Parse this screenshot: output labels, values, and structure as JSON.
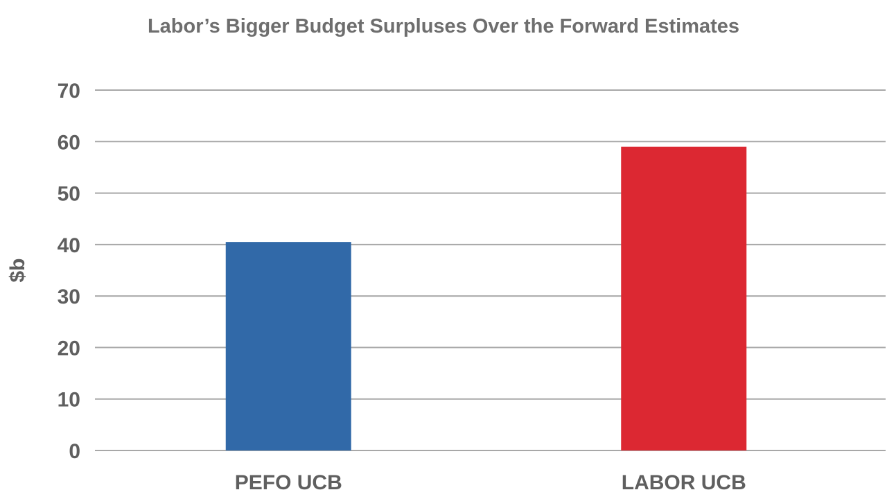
{
  "chart_data": {
    "type": "bar",
    "title": "Labor’s Bigger Budget Surpluses Over the Forward Estimates",
    "xlabel": "",
    "ylabel": "$b",
    "categories": [
      "PEFO UCB",
      "LABOR UCB"
    ],
    "values": [
      40.5,
      59
    ],
    "colors": [
      "#3169a8",
      "#dc2832"
    ],
    "ylim": [
      0,
      70
    ],
    "yticks": [
      0,
      10,
      20,
      30,
      40,
      50,
      60,
      70
    ],
    "grid": true,
    "legend": "none"
  }
}
